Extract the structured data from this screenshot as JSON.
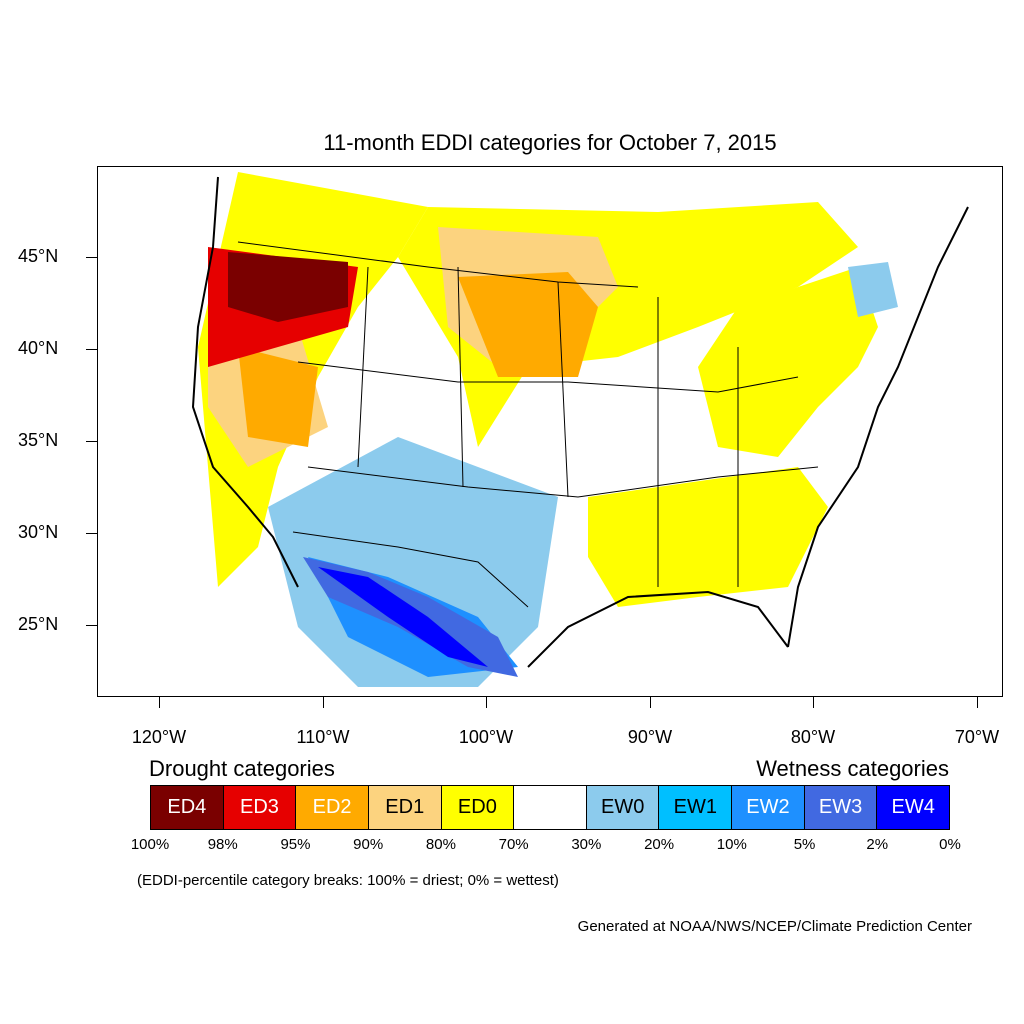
{
  "title": "11-month EDDI categories for October 7, 2015",
  "lat_labels": [
    "45°N",
    "40°N",
    "35°N",
    "30°N",
    "25°N"
  ],
  "lon_labels": [
    "120°W",
    "110°W",
    "100°W",
    "90°W",
    "80°W",
    "70°W"
  ],
  "legend": {
    "drought_heading": "Drought categories",
    "wetness_heading": "Wetness categories",
    "categories": [
      {
        "label": "ED4",
        "color": "#7a0000",
        "text_color": "#ffffff"
      },
      {
        "label": "ED3",
        "color": "#e60000",
        "text_color": "#ffffff"
      },
      {
        "label": "ED2",
        "color": "#ffaa00",
        "text_color": "#ffffff"
      },
      {
        "label": "ED1",
        "color": "#fcd37f",
        "text_color": "#000000"
      },
      {
        "label": "ED0",
        "color": "#ffff00",
        "text_color": "#000000"
      },
      {
        "label": "",
        "color": "#ffffff",
        "text_color": "#000000"
      },
      {
        "label": "EW0",
        "color": "#8ccbed",
        "text_color": "#000000"
      },
      {
        "label": "EW1",
        "color": "#00bfff",
        "text_color": "#000000"
      },
      {
        "label": "EW2",
        "color": "#1e90ff",
        "text_color": "#ffffff"
      },
      {
        "label": "EW3",
        "color": "#4169e1",
        "text_color": "#ffffff"
      },
      {
        "label": "EW4",
        "color": "#0000ff",
        "text_color": "#ffffff"
      }
    ],
    "breaks": [
      "100%",
      "98%",
      "95%",
      "90%",
      "80%",
      "70%",
      "30%",
      "20%",
      "10%",
      "5%",
      "2%",
      "0%"
    ]
  },
  "note": "(EDDI-percentile category breaks: 100% = driest; 0% = wettest)",
  "credit": "Generated at NOAA/NWS/NCEP/Climate Prediction Center"
}
